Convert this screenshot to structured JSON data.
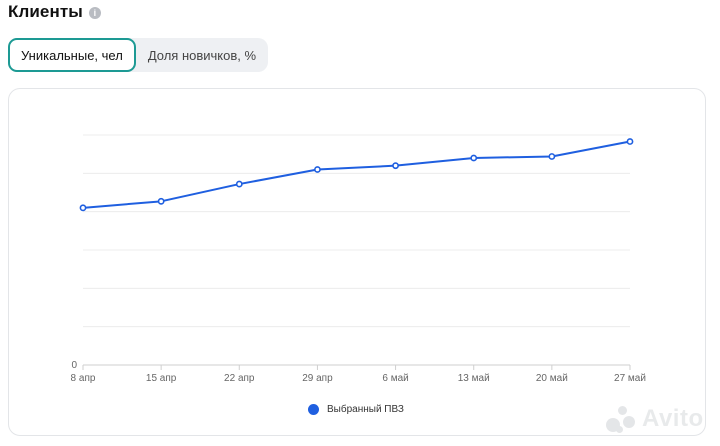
{
  "header": {
    "title": "Клиенты",
    "info_icon": "info-icon"
  },
  "tabs": [
    {
      "label": "Уникальные, чел",
      "active": true
    },
    {
      "label": "Доля новичков, %",
      "active": false
    }
  ],
  "chart_data": {
    "type": "line",
    "categories": [
      "8 апр",
      "15 апр",
      "22 апр",
      "29 апр",
      "6 май",
      "13 май",
      "20 май",
      "27 май"
    ],
    "y_tick_labels": [
      "0"
    ],
    "ylim": [
      0,
      6
    ],
    "series": [
      {
        "name": "Выбранный ПВЗ",
        "color": "#1f5fe0",
        "values": [
          4.1,
          4.27,
          4.72,
          5.1,
          5.2,
          5.4,
          5.44,
          5.83
        ]
      }
    ],
    "grid": true,
    "legend_position": "bottom-center"
  },
  "legend": {
    "label": "Выбранный ПВЗ",
    "color": "#1f5fe0"
  },
  "watermark": {
    "text": "Avito"
  }
}
